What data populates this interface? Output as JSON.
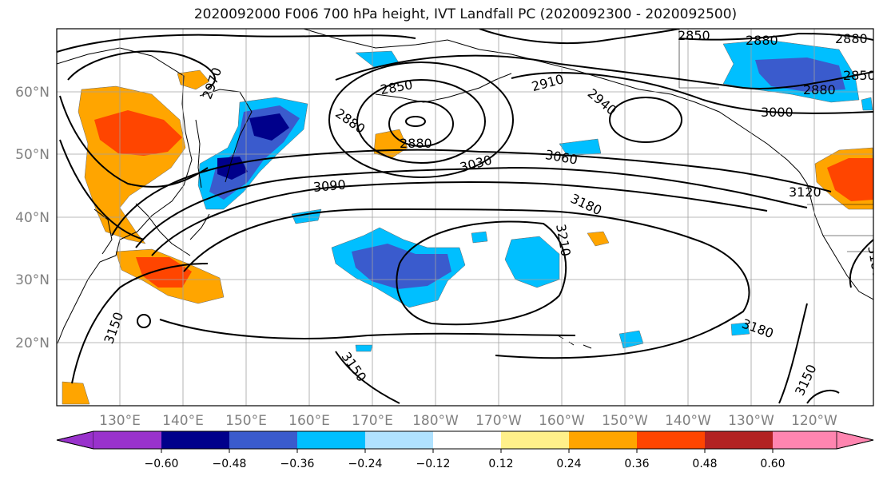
{
  "title": "2020092000 F006 700 hPa height, IVT Landfall PC (2020092300 - 2020092500)",
  "lon_labels": [
    "130°E",
    "140°E",
    "150°E",
    "160°E",
    "170°E",
    "180°W",
    "170°W",
    "160°W",
    "150°W",
    "140°W",
    "130°W",
    "120°W"
  ],
  "lat_labels": [
    "60°N",
    "50°N",
    "40°N",
    "30°N",
    "20°N"
  ],
  "contour_labels": [
    "2970",
    "2850",
    "2880",
    "2910",
    "2940",
    "2880",
    "2850",
    "2880",
    "3000",
    "2880",
    "2850",
    "2880",
    "3030",
    "3060",
    "3090",
    "3120",
    "3180",
    "3210",
    "3150",
    "3180",
    "3150",
    "3150",
    "3180"
  ],
  "colorbar": {
    "tick_labels": [
      "−0.60",
      "−0.48",
      "−0.36",
      "−0.24",
      "−0.12",
      "0.12",
      "0.24",
      "0.36",
      "0.48",
      "0.60"
    ],
    "colors": [
      "#9932cc",
      "#00008b",
      "#3a5bcd",
      "#00bfff",
      "#b0e2ff",
      "#ffffff",
      "#fff08a",
      "#ffa500",
      "#ff4500",
      "#b22222",
      "#ff85b0"
    ]
  },
  "colors": {
    "axis": "#000000",
    "grid": "#a0a0a0",
    "contour": "#000000",
    "tick_label": "#808080"
  }
}
